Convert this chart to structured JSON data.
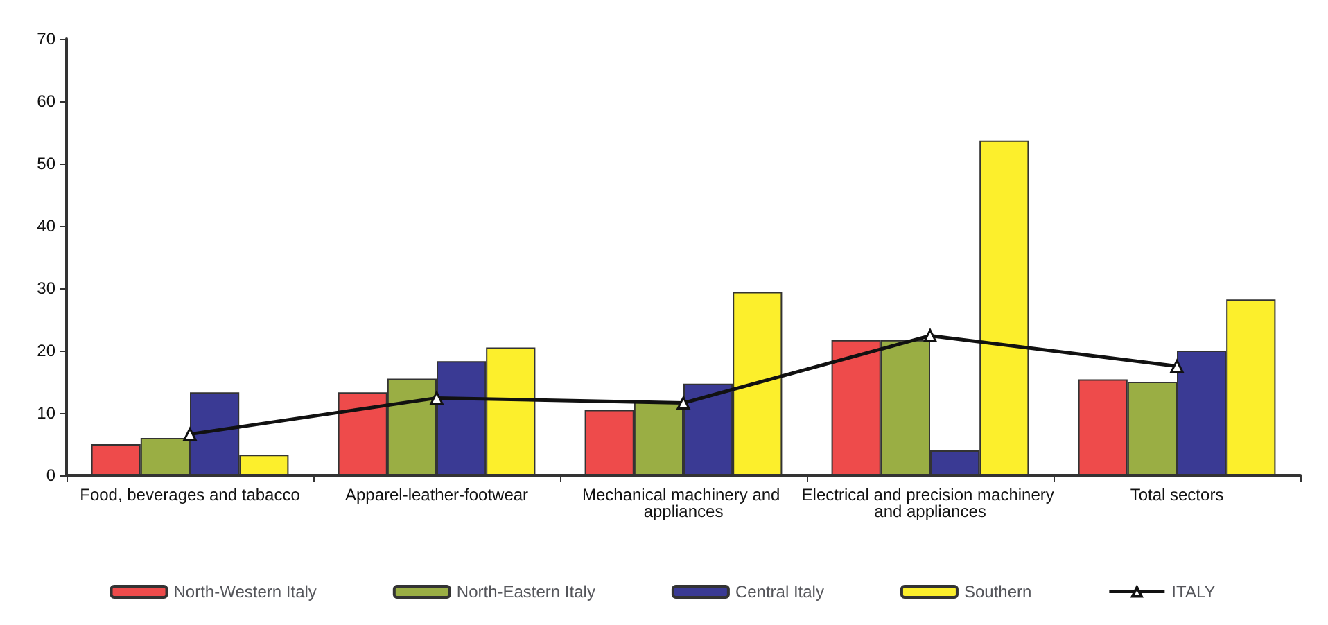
{
  "chart_data": {
    "type": "bar",
    "categories": [
      "Food, beverages and tabacco",
      "Apparel-leather-footwear",
      "Mechanical machinery and appliances",
      "Electrical and precision machinery and appliances",
      "Total sectors"
    ],
    "series": [
      {
        "name": "North-Western Italy",
        "color": "#ee4b4b",
        "values": [
          5,
          13.3,
          10.5,
          21.7,
          15.4
        ]
      },
      {
        "name": "North-Eastern Italy",
        "color": "#9aae44",
        "values": [
          6,
          15.5,
          11.8,
          21.7,
          15
        ]
      },
      {
        "name": "Central Italy",
        "color": "#3a3a94",
        "values": [
          13.3,
          18.3,
          14.7,
          4,
          20
        ]
      },
      {
        "name": "Southern",
        "color": "#fcef2c",
        "values": [
          3.3,
          20.5,
          29.4,
          53.7,
          28.2
        ]
      },
      {
        "name": "ITALY",
        "type": "line",
        "color": "#111111",
        "marker": "triangle",
        "values": [
          6.6,
          12.4,
          11.6,
          22.4,
          17.5
        ]
      }
    ],
    "ylim": [
      0,
      70
    ],
    "yticks": [
      0,
      10,
      20,
      30,
      40,
      50,
      60,
      70
    ],
    "grid": false,
    "legend": "bottom"
  }
}
